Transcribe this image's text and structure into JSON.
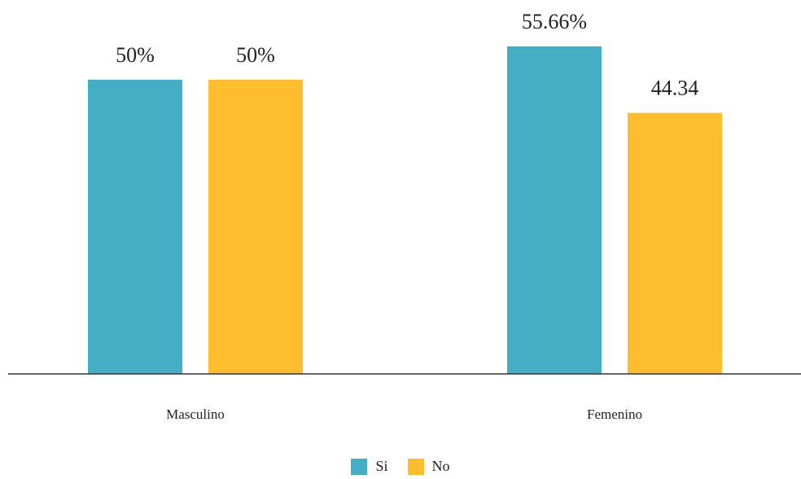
{
  "chart_data": {
    "type": "bar",
    "categories": [
      "Masculino",
      "Femenino"
    ],
    "series": [
      {
        "name": "Si",
        "values": [
          50,
          55.66
        ],
        "labels": [
          "50%",
          "55.66%"
        ],
        "color": "#44aec4"
      },
      {
        "name": "No",
        "values": [
          50,
          44.34
        ],
        "labels": [
          "50%",
          "44.34"
        ],
        "color": "#fdbd2c"
      }
    ],
    "title": "",
    "xlabel": "",
    "ylabel": "",
    "ylim": [
      0,
      62
    ],
    "grid": false,
    "legend_position": "bottom-center"
  }
}
